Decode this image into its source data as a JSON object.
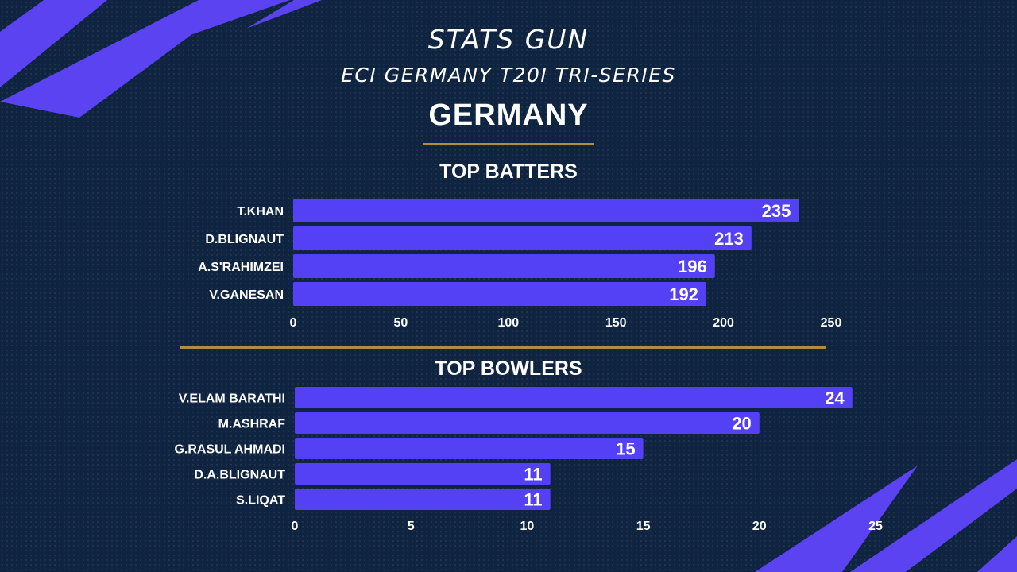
{
  "brand": "STATS GUN",
  "subtitle": "ECI GERMANY T20I TRI-SERIES",
  "team": "GERMANY",
  "colors": {
    "background": "#0f2440",
    "bar": "#5440f5",
    "accent": "#b08d42",
    "decor": "#5b43f2"
  },
  "chart_data": [
    {
      "type": "bar",
      "orientation": "horizontal",
      "title": "TOP BATTERS",
      "categories": [
        "T.KHAN",
        "D.BLIGNAUT",
        "A.S'RAHIMZEI",
        "V.GANESAN"
      ],
      "values": [
        235,
        213,
        196,
        192
      ],
      "xlim": [
        0,
        250
      ],
      "ticks": [
        0,
        50,
        100,
        150,
        200,
        250
      ]
    },
    {
      "type": "bar",
      "orientation": "horizontal",
      "title": "TOP BOWLERS",
      "categories": [
        "V.ELAM BARATHI",
        "M.ASHRAF",
        "G.RASUL AHMADI",
        "D.A.BLIGNAUT",
        "S.LIQAT"
      ],
      "values": [
        24,
        20,
        15,
        11,
        11
      ],
      "xlim": [
        0,
        25
      ],
      "ticks": [
        0,
        5,
        10,
        15,
        20,
        25
      ]
    }
  ]
}
